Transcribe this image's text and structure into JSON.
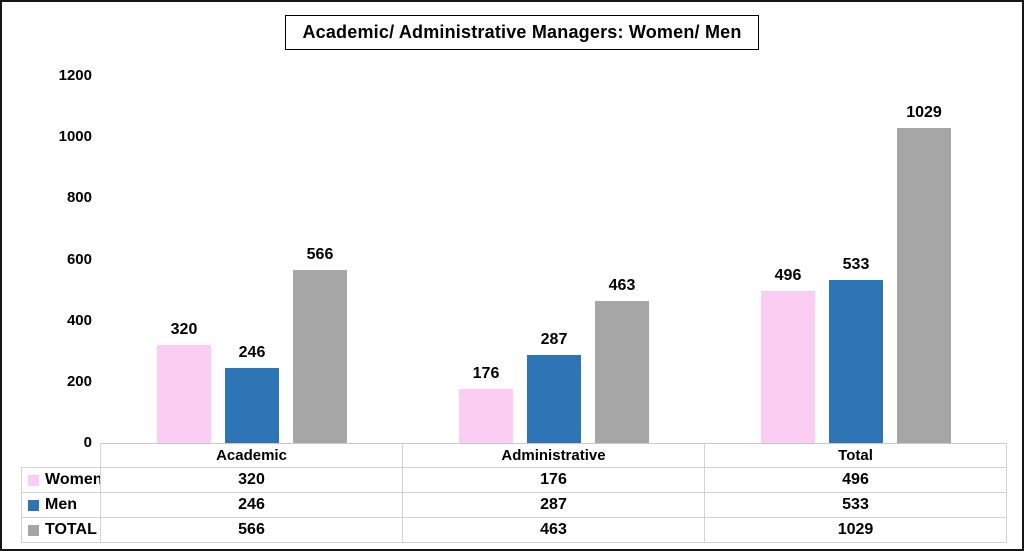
{
  "chart_data": {
    "type": "bar",
    "title": "Academic/ Administrative Managers: Women/ Men",
    "categories": [
      "Academic",
      "Administrative",
      "Total"
    ],
    "series": [
      {
        "name": "Women",
        "values": [
          320,
          176,
          496
        ],
        "color": "#FBCDF2"
      },
      {
        "name": "Men",
        "values": [
          246,
          287,
          533
        ],
        "color": "#2E75B6"
      },
      {
        "name": "TOTAL",
        "values": [
          566,
          463,
          1029
        ],
        "color": "#A6A6A6"
      }
    ],
    "xlabel": "",
    "ylabel": "",
    "ylim": [
      0,
      1200
    ],
    "yticks": [
      0,
      200,
      400,
      600,
      800,
      1000,
      1200
    ],
    "grid": false,
    "data_labels": true,
    "data_table": true,
    "legend_position": "table-left"
  },
  "colors": {
    "frame_border": "#161616",
    "table_border": "#D3D3D3",
    "axis_line": "#C9C9C9",
    "background": "#FFFFFF"
  }
}
